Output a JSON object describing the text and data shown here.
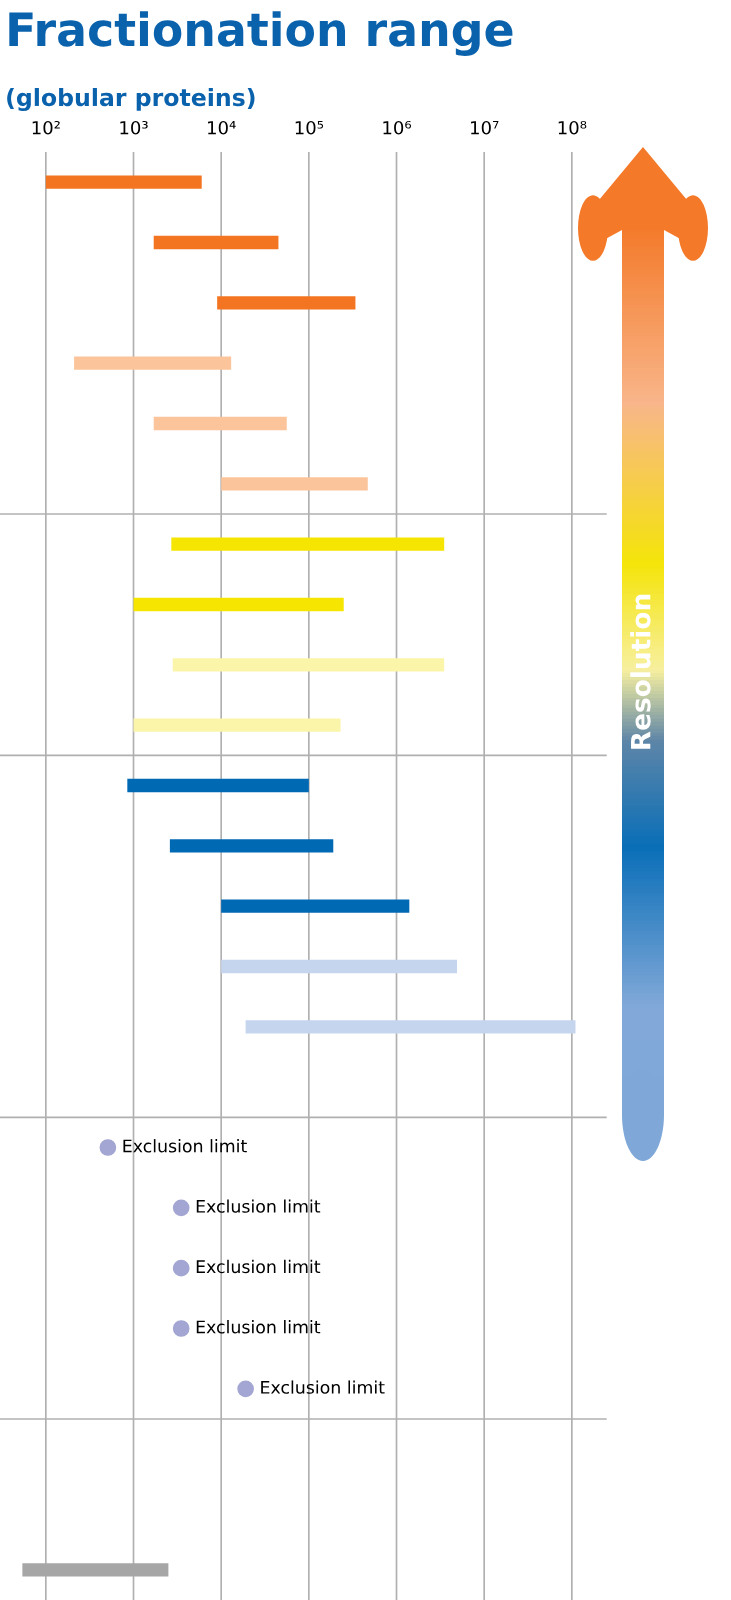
{
  "chart_data": {
    "type": "bar",
    "orientation": "horizontal",
    "title": "Fractionation range",
    "subtitle": "(globular proteins)",
    "categories": [
      null,
      null,
      null,
      null,
      null,
      null,
      null,
      null,
      null,
      null,
      null,
      null,
      null,
      null,
      null,
      null,
      null,
      null,
      null,
      null,
      null,
      null,
      null,
      null
    ],
    "series": [
      {
        "type": "bar",
        "base": [
          100,
          1700,
          9000,
          210,
          1700,
          10000,
          2700,
          1000,
          2800,
          1000,
          850,
          2600,
          10000,
          10000,
          19000,
          null,
          null,
          null,
          null,
          null,
          null,
          null,
          null,
          54
        ],
        "colors": [
          "#f47521",
          "#f47521",
          "#f47521",
          "#fbc49a",
          "#fbc49a",
          "#fbc49a",
          "#f5e500",
          "#f5e500",
          "#fbf5aa",
          "#fbf5aa",
          "#0069b4",
          "#0069b4",
          "#0069b4",
          "#c5d5ee",
          "#c5d5ee",
          null,
          null,
          null,
          null,
          null,
          null,
          null,
          null,
          "#a6a6a6"
        ],
        "values": [
          5900,
          43300,
          331000,
          12790,
          54300,
          460000,
          3497300,
          249000,
          3497200,
          229000,
          99150,
          187400,
          1390000,
          4890000,
          109981000,
          null,
          null,
          null,
          null,
          null,
          null,
          null,
          null,
          2446
        ]
      },
      {
        "type": "scatter",
        "marker": "circle",
        "color": "#a3a6d2",
        "values": [
          null,
          null,
          null,
          null,
          null,
          null,
          null,
          null,
          null,
          null,
          null,
          null,
          null,
          null,
          null,
          null,
          510,
          3500,
          3500,
          3500,
          19000,
          null,
          null,
          null
        ],
        "value_labels": [
          null,
          null,
          null,
          null,
          null,
          null,
          null,
          null,
          null,
          null,
          null,
          null,
          null,
          null,
          null,
          null,
          "Exclusion limit",
          "Exclusion limit",
          "Exclusion limit",
          "Exclusion limit",
          "Exclusion limit",
          null,
          null,
          null
        ]
      }
    ],
    "log": "x",
    "xlim": [
      30,
      250000000
    ],
    "xticks": [
      {
        "value": 100,
        "label": "10²"
      },
      {
        "value": 1000,
        "label": "10³"
      },
      {
        "value": 10000,
        "label": "10⁴"
      },
      {
        "value": 100000,
        "label": "10⁵"
      },
      {
        "value": 1000000,
        "label": "10⁶"
      },
      {
        "value": 10000000,
        "label": "10⁷"
      },
      {
        "value": 100000000,
        "label": "10⁸"
      }
    ],
    "grid": "x",
    "tick_labels": "x",
    "annotations": [
      "Resolution"
    ]
  }
}
